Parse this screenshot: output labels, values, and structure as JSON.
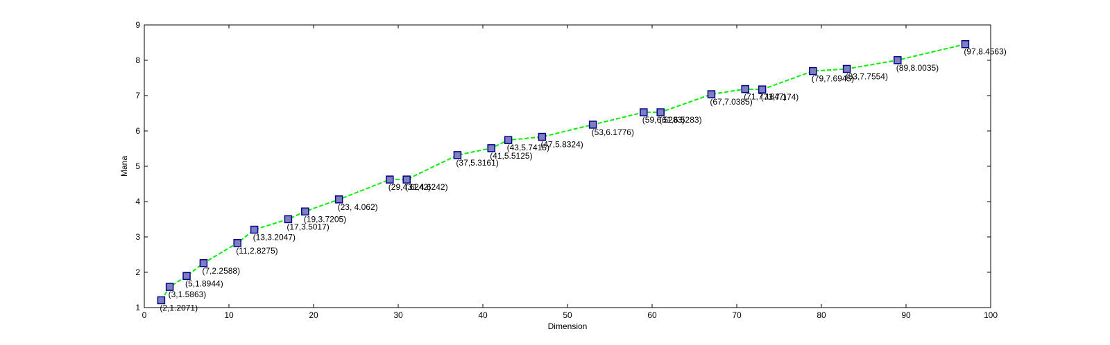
{
  "chart_data": {
    "type": "line",
    "title": "",
    "xlabel": "Dimension",
    "ylabel": "Mana",
    "xlim": [
      0,
      100
    ],
    "ylim": [
      1,
      9
    ],
    "xticks": [
      0,
      10,
      20,
      30,
      40,
      50,
      60,
      70,
      80,
      90,
      100
    ],
    "yticks": [
      1,
      2,
      3,
      4,
      5,
      6,
      7,
      8,
      9
    ],
    "grid": false,
    "legend": "none",
    "line_color": "#00ee00",
    "line_style": "dashed",
    "marker": "square",
    "marker_fill": "#7f7fbf",
    "marker_edge": "#00008b",
    "series": [
      {
        "x": [
          2,
          3,
          5,
          7,
          11,
          13,
          17,
          19,
          23,
          29,
          31,
          37,
          41,
          43,
          47,
          53,
          59,
          61,
          67,
          71,
          73,
          79,
          83,
          89,
          97
        ],
        "y": [
          1.2071,
          1.5863,
          1.8944,
          2.2588,
          2.8275,
          3.2047,
          3.5017,
          3.7205,
          4.062,
          4.6242,
          4.6242,
          5.3161,
          5.5125,
          5.7415,
          5.8324,
          6.1776,
          6.5283,
          6.5283,
          7.0385,
          7.1847,
          7.174,
          7.6945,
          7.7554,
          8.0035,
          8.4563
        ],
        "labels": [
          "(2,1.2071)",
          "(3,1.5863)",
          "(5,1.8944)",
          "(7,2.2588)",
          "(11,2.8275)",
          "(13,3.2047)",
          "(17,3.5017)",
          "(19,3.7205)",
          "(23, 4.062)",
          "(29,4.6242)",
          "(31,4.6242)",
          "(37,5.3161)",
          "(41,5.5125)",
          "(43,5.7415)",
          "(47,5.8324)",
          "(53,6.1776)",
          "(59,6.5283)",
          "(61,6.5283)",
          "(67,7.0385)",
          "(71,7.1847)",
          "(73,7.174)",
          "(79,7.6945)",
          "(83,7.7554)",
          "(89,8.0035)",
          "(97,8.4563)"
        ]
      }
    ]
  }
}
